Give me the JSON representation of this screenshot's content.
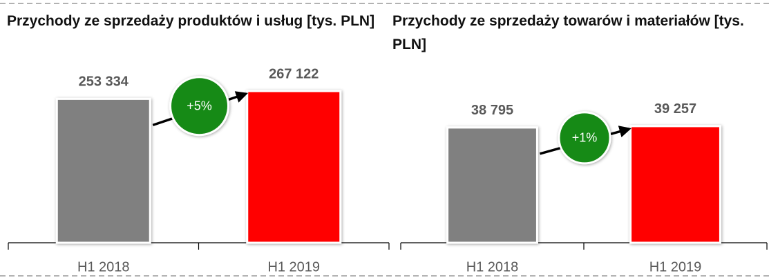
{
  "chart_data": [
    {
      "type": "bar",
      "title": "Przychody ze sprzedaży produktów i usług [tys. PLN]",
      "categories": [
        "H1 2018",
        "H1 2019"
      ],
      "values": [
        253334,
        267122
      ],
      "value_labels": [
        "253 334",
        "267 122"
      ],
      "colors": [
        "#808080",
        "#ff0000"
      ],
      "ylim": [
        0,
        340000
      ],
      "annotation": "+5%",
      "annotation_color": "#138a13"
    },
    {
      "type": "bar",
      "title": "Przychody ze sprzedaży towarów i materiałów [tys. PLN]",
      "categories": [
        "H1 2018",
        "H1 2019"
      ],
      "values": [
        38795,
        39257
      ],
      "value_labels": [
        "38 795",
        "39 257"
      ],
      "colors": [
        "#808080",
        "#ff0000"
      ],
      "ylim": [
        0,
        65000
      ],
      "annotation": "+1%",
      "annotation_color": "#138a13"
    }
  ]
}
